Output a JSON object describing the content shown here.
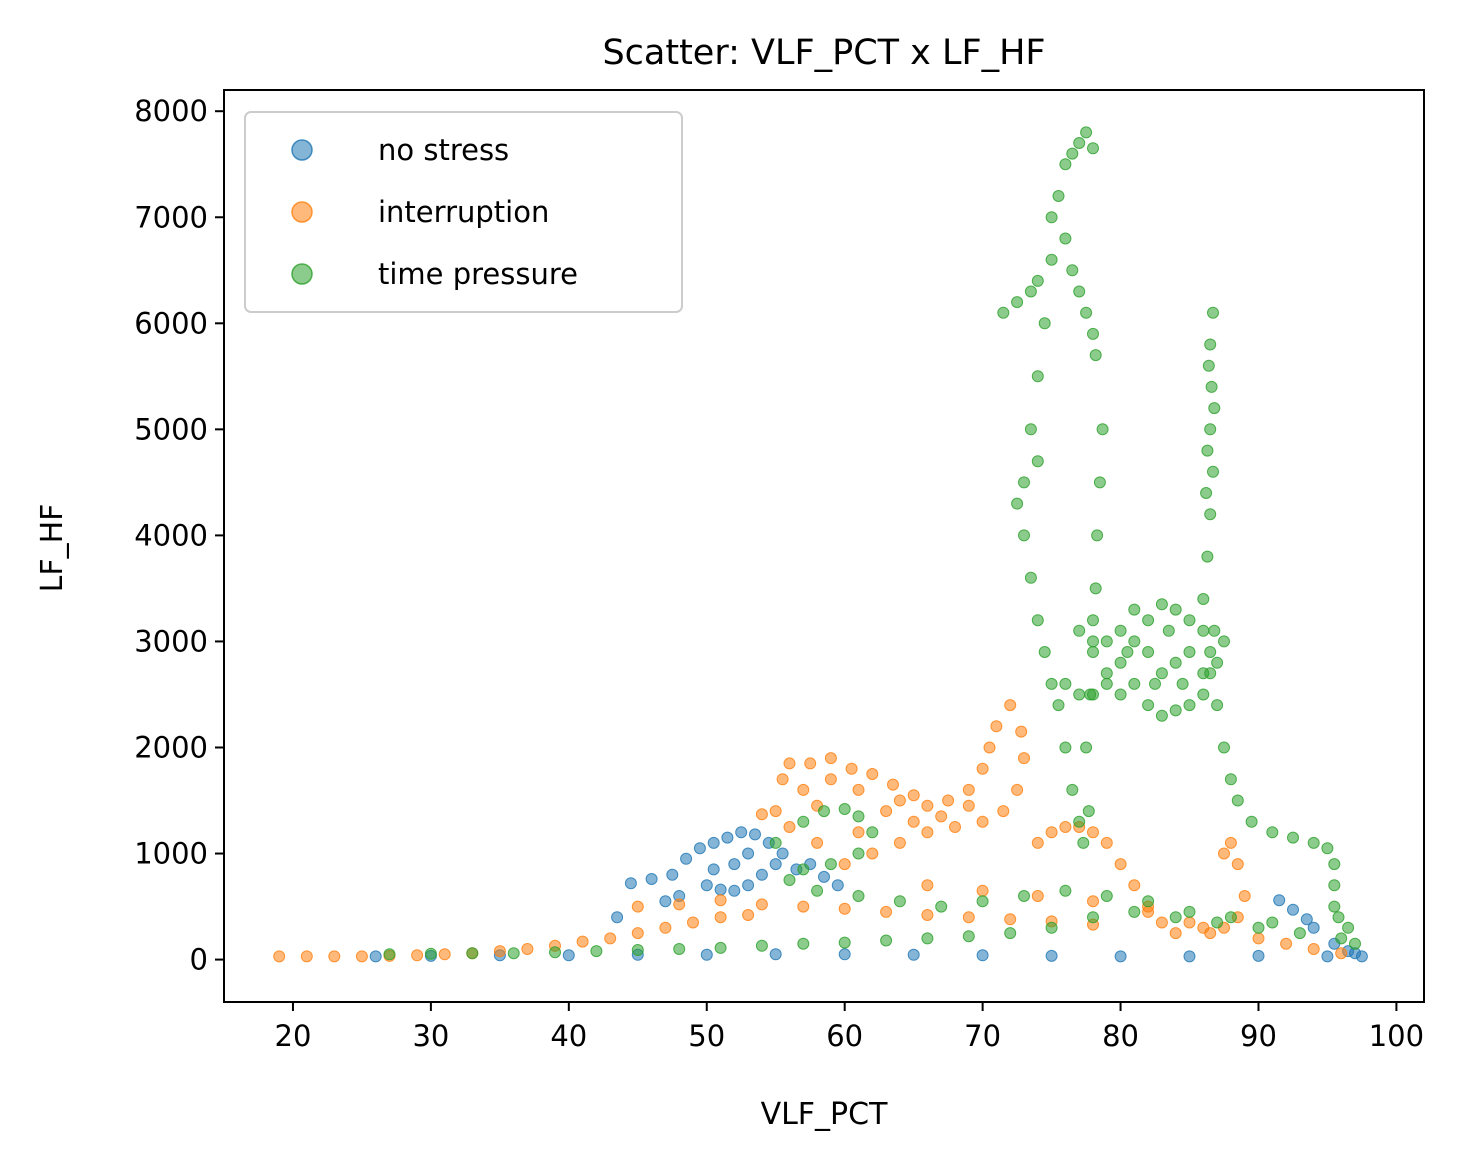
{
  "chart_data": {
    "type": "scatter",
    "title": "Scatter: VLF_PCT x LF_HF",
    "xlabel": "VLF_PCT",
    "ylabel": "LF_HF",
    "xlim": [
      15,
      102
    ],
    "ylim": [
      -400,
      8200
    ],
    "xticks": [
      20,
      30,
      40,
      50,
      60,
      70,
      80,
      90,
      100
    ],
    "yticks": [
      0,
      1000,
      2000,
      3000,
      4000,
      5000,
      6000,
      7000,
      8000
    ],
    "grid": false,
    "legend_position": "upper-left",
    "series": [
      {
        "name": "no stress",
        "color": "#1f77b4",
        "points": [
          [
            26,
            30
          ],
          [
            30,
            35
          ],
          [
            35,
            40
          ],
          [
            40,
            40
          ],
          [
            45,
            45
          ],
          [
            50,
            45
          ],
          [
            55,
            50
          ],
          [
            60,
            50
          ],
          [
            65,
            45
          ],
          [
            70,
            40
          ],
          [
            75,
            35
          ],
          [
            80,
            30
          ],
          [
            85,
            30
          ],
          [
            90,
            35
          ],
          [
            95,
            30
          ],
          [
            97.5,
            30
          ],
          [
            43.5,
            400
          ],
          [
            44.5,
            720
          ],
          [
            46,
            760
          ],
          [
            47.5,
            800
          ],
          [
            48.5,
            950
          ],
          [
            49.5,
            1050
          ],
          [
            50.5,
            1100
          ],
          [
            51.5,
            1150
          ],
          [
            52.5,
            1200
          ],
          [
            53.5,
            1180
          ],
          [
            54.5,
            1100
          ],
          [
            55.5,
            1000
          ],
          [
            55,
            900
          ],
          [
            54,
            800
          ],
          [
            53,
            700
          ],
          [
            52,
            650
          ],
          [
            51,
            660
          ],
          [
            50,
            700
          ],
          [
            48,
            600
          ],
          [
            47,
            550
          ],
          [
            56.5,
            850
          ],
          [
            57.5,
            900
          ],
          [
            58.5,
            780
          ],
          [
            59.5,
            700
          ],
          [
            52,
            900
          ],
          [
            50.5,
            850
          ],
          [
            53,
            1000
          ],
          [
            91.5,
            560
          ],
          [
            92.5,
            470
          ],
          [
            93.5,
            380
          ],
          [
            94,
            300
          ],
          [
            95.5,
            150
          ],
          [
            96.5,
            80
          ],
          [
            97,
            60
          ]
        ]
      },
      {
        "name": "interruption",
        "color": "#ff7f0e",
        "points": [
          [
            19,
            30
          ],
          [
            21,
            30
          ],
          [
            23,
            30
          ],
          [
            25,
            30
          ],
          [
            27,
            35
          ],
          [
            29,
            40
          ],
          [
            31,
            50
          ],
          [
            33,
            60
          ],
          [
            35,
            80
          ],
          [
            37,
            100
          ],
          [
            39,
            130
          ],
          [
            41,
            170
          ],
          [
            43,
            200
          ],
          [
            45,
            250
          ],
          [
            47,
            300
          ],
          [
            49,
            350
          ],
          [
            51,
            400
          ],
          [
            53,
            420
          ],
          [
            45,
            500
          ],
          [
            48,
            520
          ],
          [
            51,
            560
          ],
          [
            54,
            520
          ],
          [
            57,
            500
          ],
          [
            60,
            480
          ],
          [
            63,
            450
          ],
          [
            66,
            420
          ],
          [
            69,
            400
          ],
          [
            72,
            380
          ],
          [
            75,
            360
          ],
          [
            78,
            330
          ],
          [
            54,
            1370
          ],
          [
            55,
            1400
          ],
          [
            56,
            1850
          ],
          [
            57.5,
            1850
          ],
          [
            59,
            1900
          ],
          [
            60.5,
            1800
          ],
          [
            62,
            1750
          ],
          [
            63.5,
            1650
          ],
          [
            65,
            1550
          ],
          [
            66,
            1450
          ],
          [
            67.5,
            1500
          ],
          [
            69,
            1600
          ],
          [
            70,
            1800
          ],
          [
            70.5,
            2000
          ],
          [
            71,
            2200
          ],
          [
            72,
            2400
          ],
          [
            72.8,
            2150
          ],
          [
            73,
            1900
          ],
          [
            72.5,
            1600
          ],
          [
            71.5,
            1400
          ],
          [
            70,
            1300
          ],
          [
            68,
            1250
          ],
          [
            66,
            1200
          ],
          [
            64,
            1100
          ],
          [
            62,
            1000
          ],
          [
            60,
            900
          ],
          [
            58,
            1100
          ],
          [
            56,
            1250
          ],
          [
            57,
            1600
          ],
          [
            59,
            1700
          ],
          [
            61,
            1600
          ],
          [
            63,
            1400
          ],
          [
            65,
            1300
          ],
          [
            67,
            1350
          ],
          [
            69,
            1450
          ],
          [
            55.5,
            1700
          ],
          [
            58,
            1450
          ],
          [
            61,
            1200
          ],
          [
            64,
            1500
          ],
          [
            74,
            1100
          ],
          [
            75,
            1200
          ],
          [
            76,
            1250
          ],
          [
            77,
            1250
          ],
          [
            78,
            1200
          ],
          [
            79,
            1100
          ],
          [
            80,
            900
          ],
          [
            81,
            700
          ],
          [
            82,
            500
          ],
          [
            83,
            350
          ],
          [
            84,
            250
          ],
          [
            86,
            300
          ],
          [
            87.5,
            1000
          ],
          [
            88,
            1100
          ],
          [
            88.5,
            900
          ],
          [
            89,
            600
          ],
          [
            88.5,
            400
          ],
          [
            87.5,
            300
          ],
          [
            86.5,
            250
          ],
          [
            90,
            200
          ],
          [
            92,
            150
          ],
          [
            94,
            100
          ],
          [
            96,
            60
          ],
          [
            66,
            700
          ],
          [
            70,
            650
          ],
          [
            74,
            600
          ],
          [
            78,
            550
          ],
          [
            82,
            450
          ],
          [
            85,
            350
          ]
        ]
      },
      {
        "name": "time pressure",
        "color": "#2ca02c",
        "points": [
          [
            27,
            50
          ],
          [
            30,
            55
          ],
          [
            33,
            60
          ],
          [
            36,
            60
          ],
          [
            39,
            70
          ],
          [
            42,
            80
          ],
          [
            45,
            90
          ],
          [
            48,
            100
          ],
          [
            51,
            110
          ],
          [
            54,
            130
          ],
          [
            57,
            150
          ],
          [
            60,
            160
          ],
          [
            63,
            180
          ],
          [
            66,
            200
          ],
          [
            69,
            220
          ],
          [
            72,
            250
          ],
          [
            75,
            300
          ],
          [
            78,
            400
          ],
          [
            81,
            450
          ],
          [
            84,
            400
          ],
          [
            87,
            350
          ],
          [
            90,
            300
          ],
          [
            93,
            250
          ],
          [
            96,
            200
          ],
          [
            55,
            1100
          ],
          [
            57,
            1300
          ],
          [
            58.5,
            1400
          ],
          [
            60,
            1420
          ],
          [
            61,
            1350
          ],
          [
            62,
            1200
          ],
          [
            61,
            1000
          ],
          [
            59,
            900
          ],
          [
            57,
            850
          ],
          [
            56,
            750
          ],
          [
            58,
            650
          ],
          [
            61,
            600
          ],
          [
            64,
            550
          ],
          [
            67,
            500
          ],
          [
            70,
            550
          ],
          [
            73,
            600
          ],
          [
            76,
            650
          ],
          [
            79,
            600
          ],
          [
            82,
            550
          ],
          [
            85,
            450
          ],
          [
            88,
            400
          ],
          [
            91,
            350
          ],
          [
            71.5,
            6100
          ],
          [
            72.5,
            6200
          ],
          [
            73.5,
            6300
          ],
          [
            74,
            6400
          ],
          [
            74.5,
            6000
          ],
          [
            75,
            7000
          ],
          [
            75.5,
            7200
          ],
          [
            76,
            7500
          ],
          [
            76.5,
            7600
          ],
          [
            77,
            7700
          ],
          [
            77.5,
            7800
          ],
          [
            78,
            7650
          ],
          [
            76,
            6800
          ],
          [
            76.5,
            6500
          ],
          [
            77,
            6300
          ],
          [
            77.5,
            6100
          ],
          [
            78,
            5900
          ],
          [
            78.2,
            5700
          ],
          [
            75,
            6600
          ],
          [
            74,
            5500
          ],
          [
            73.5,
            5000
          ],
          [
            74,
            4700
          ],
          [
            73,
            4500
          ],
          [
            72.5,
            4300
          ],
          [
            73,
            4000
          ],
          [
            73.5,
            3600
          ],
          [
            74,
            3200
          ],
          [
            74.5,
            2900
          ],
          [
            75,
            2600
          ],
          [
            75.5,
            2400
          ],
          [
            76,
            2000
          ],
          [
            76.5,
            1600
          ],
          [
            77,
            1300
          ],
          [
            77.3,
            1100
          ],
          [
            77.7,
            1400
          ],
          [
            77.5,
            2000
          ],
          [
            77.8,
            2500
          ],
          [
            78,
            3000
          ],
          [
            78.2,
            3500
          ],
          [
            78.3,
            4000
          ],
          [
            78.5,
            4500
          ],
          [
            78.7,
            5000
          ],
          [
            76,
            2600
          ],
          [
            77,
            2500
          ],
          [
            78,
            2500
          ],
          [
            79,
            2600
          ],
          [
            80,
            2800
          ],
          [
            81,
            3000
          ],
          [
            82,
            3200
          ],
          [
            83,
            3350
          ],
          [
            84,
            3300
          ],
          [
            85,
            3200
          ],
          [
            86,
            3100
          ],
          [
            86.5,
            2900
          ],
          [
            86.5,
            2700
          ],
          [
            86,
            2500
          ],
          [
            85,
            2400
          ],
          [
            84,
            2350
          ],
          [
            83,
            2300
          ],
          [
            82,
            2400
          ],
          [
            81,
            2600
          ],
          [
            80,
            2500
          ],
          [
            79,
            2700
          ],
          [
            78,
            2900
          ],
          [
            77,
            3100
          ],
          [
            78,
            3200
          ],
          [
            79,
            3000
          ],
          [
            80,
            3100
          ],
          [
            81,
            3300
          ],
          [
            82,
            2900
          ],
          [
            83,
            2700
          ],
          [
            84,
            2800
          ],
          [
            85,
            2900
          ],
          [
            86,
            2700
          ],
          [
            87,
            2800
          ],
          [
            87.5,
            3000
          ],
          [
            86.8,
            3100
          ],
          [
            82.5,
            2600
          ],
          [
            84.5,
            2600
          ],
          [
            80.5,
            2900
          ],
          [
            83.5,
            3100
          ],
          [
            86,
            3400
          ],
          [
            86.3,
            3800
          ],
          [
            86.5,
            4200
          ],
          [
            86.7,
            4600
          ],
          [
            86.5,
            5000
          ],
          [
            86.6,
            5400
          ],
          [
            86.5,
            5800
          ],
          [
            86.7,
            6100
          ],
          [
            86.3,
            4800
          ],
          [
            86.8,
            5200
          ],
          [
            86.4,
            5600
          ],
          [
            86.2,
            4400
          ],
          [
            87,
            2400
          ],
          [
            87.5,
            2000
          ],
          [
            88,
            1700
          ],
          [
            88.5,
            1500
          ],
          [
            89.5,
            1300
          ],
          [
            91,
            1200
          ],
          [
            92.5,
            1150
          ],
          [
            94,
            1100
          ],
          [
            95,
            1050
          ],
          [
            95.5,
            900
          ],
          [
            95.5,
            700
          ],
          [
            95.5,
            500
          ],
          [
            95.8,
            400
          ],
          [
            96.5,
            300
          ],
          [
            97,
            150
          ]
        ]
      }
    ]
  }
}
